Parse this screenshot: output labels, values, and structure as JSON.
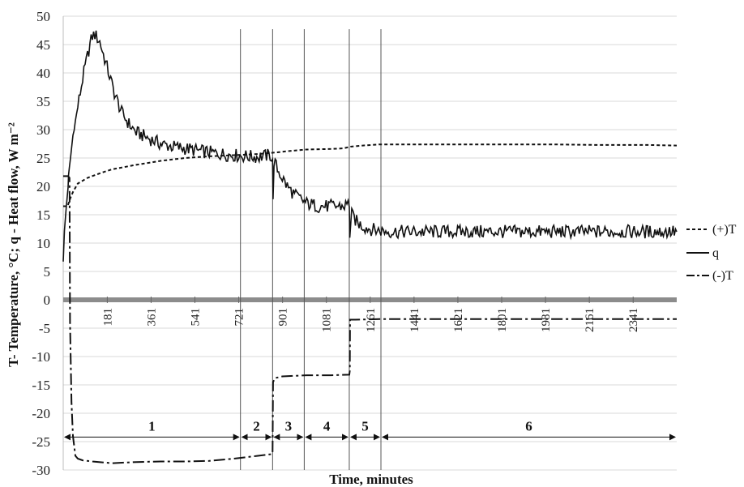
{
  "chart_data": {
    "type": "line",
    "xlabel": "Time, minutes",
    "ylabel": "T- Temperature, °C;  q -  Heat flow, W m⁻²",
    "ylim": [
      -30,
      50
    ],
    "xlim": [
      0,
      2520
    ],
    "y_ticks": [
      50,
      45,
      40,
      35,
      30,
      25,
      20,
      15,
      10,
      5,
      0,
      -5,
      -10,
      -15,
      -20,
      -25,
      -30
    ],
    "x_tick_labels": [
      "181",
      "361",
      "541",
      "721",
      "901",
      "1081",
      "1261",
      "1441",
      "1621",
      "1801",
      "1981",
      "2161",
      "2341"
    ],
    "x_tick_values": [
      181,
      361,
      541,
      721,
      901,
      1081,
      1261,
      1441,
      1621,
      1801,
      1981,
      2161,
      2341
    ],
    "phase_boundaries": [
      0,
      728,
      860,
      990,
      1175,
      1305,
      2520
    ],
    "phases": [
      {
        "label": "1",
        "start": 0,
        "end": 728
      },
      {
        "label": "2",
        "start": 728,
        "end": 860
      },
      {
        "label": "3",
        "start": 860,
        "end": 990
      },
      {
        "label": "4",
        "start": 990,
        "end": 1175
      },
      {
        "label": "5",
        "start": 1175,
        "end": 1305
      },
      {
        "label": "6",
        "start": 1305,
        "end": 2520
      }
    ],
    "legend": [
      {
        "label": "(+)T",
        "style": "dashed"
      },
      {
        "label": "q",
        "style": "solid"
      },
      {
        "label": "(-)T",
        "style": "dash-dot"
      }
    ],
    "legend_position": "right",
    "series": [
      {
        "name": "(+)T",
        "style": "dashed",
        "x": [
          0,
          18,
          30,
          40,
          60,
          100,
          150,
          200,
          300,
          400,
          500,
          600,
          700,
          800,
          850,
          880,
          920,
          1000,
          1100,
          1150,
          1180,
          1230,
          1300,
          1400,
          1600,
          1800,
          2000,
          2200,
          2400,
          2520
        ],
        "values": [
          16.5,
          16.5,
          18,
          19,
          20.5,
          21.5,
          22.3,
          23,
          23.8,
          24.5,
          25,
          25.3,
          25.5,
          25.7,
          25.9,
          26,
          26.2,
          26.5,
          26.6,
          26.7,
          27,
          27.2,
          27.4,
          27.4,
          27.4,
          27.4,
          27.4,
          27.3,
          27.3,
          27.2
        ]
      },
      {
        "name": "q",
        "style": "solid",
        "x": [
          0,
          5,
          12,
          20,
          22,
          30,
          40,
          60,
          80,
          100,
          110,
          120,
          130,
          150,
          180,
          210,
          240,
          270,
          300,
          350,
          400,
          450,
          500,
          550,
          600,
          650,
          700,
          750,
          800,
          850,
          860,
          862,
          866,
          880,
          900,
          920,
          950,
          1000,
          1050,
          1100,
          1150,
          1175,
          1177,
          1185,
          1210,
          1240,
          1270,
          1300,
          1350,
          1500,
          1700,
          1900,
          2100,
          2300,
          2520
        ],
        "values": [
          7,
          12,
          16,
          20,
          21.8,
          25,
          29,
          34,
          39,
          43,
          45,
          46.5,
          46.8,
          45.5,
          41,
          36.5,
          33,
          31,
          29.5,
          28.5,
          27.5,
          27,
          26.7,
          26.3,
          26,
          25.7,
          25.5,
          25.3,
          25.2,
          25.5,
          25,
          17,
          24.5,
          23,
          21.5,
          20,
          18.5,
          17,
          16.5,
          16.5,
          16.5,
          17,
          11.5,
          15,
          13.5,
          12.8,
          12.4,
          12.2,
          12,
          12,
          12,
          12,
          12,
          12,
          12
        ]
      },
      {
        "name": "(-)T",
        "style": "dash-dot",
        "x": [
          0,
          20,
          26,
          28,
          34,
          40,
          50,
          60,
          80,
          120,
          200,
          300,
          400,
          500,
          600,
          700,
          800,
          858,
          860,
          862,
          870,
          900,
          950,
          1000,
          1100,
          1175,
          1177,
          1178,
          1180,
          1200,
          1300,
          1500,
          2000,
          2520
        ],
        "values": [
          21.8,
          21.8,
          21.5,
          -4,
          -18,
          -24,
          -27.5,
          -28,
          -28.3,
          -28.5,
          -28.8,
          -28.6,
          -28.5,
          -28.5,
          -28.4,
          -28,
          -27.5,
          -27.2,
          -27,
          -14.5,
          -13.8,
          -13.5,
          -13.4,
          -13.3,
          -13.3,
          -13.2,
          -12.5,
          -3.5,
          -3.5,
          -3.5,
          -3.4,
          -3.4,
          -3.4,
          -3.4
        ]
      }
    ]
  }
}
